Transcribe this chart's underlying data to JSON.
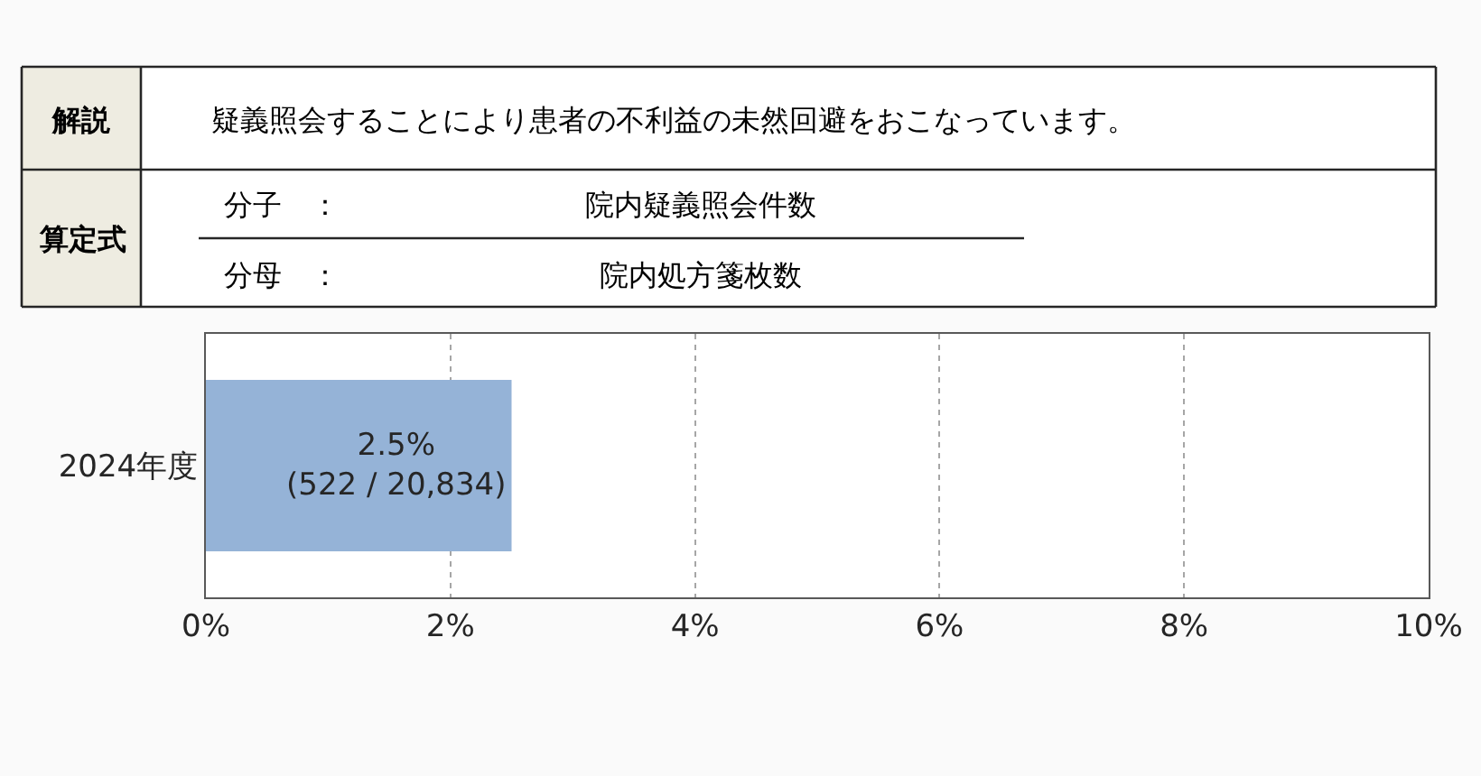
{
  "chart_data": {
    "type": "bar",
    "orientation": "horizontal",
    "categories": [
      "2024年度"
    ],
    "series": [
      {
        "color": "#95b3d7",
        "values": [
          2.5
        ],
        "value_labels": [
          "2.5%\n(522 / 20,834)"
        ]
      }
    ],
    "xlim": [
      0,
      10
    ],
    "xticks": [
      {
        "value": 0,
        "label": "0%"
      },
      {
        "value": 2,
        "label": "2%"
      },
      {
        "value": 4,
        "label": "4%"
      },
      {
        "value": 6,
        "label": "6%"
      },
      {
        "value": 8,
        "label": "8%"
      },
      {
        "value": 10,
        "label": "10%"
      }
    ],
    "grid": "x",
    "annotations": [
      "解説",
      "疑義照会することにより患者の不利益の未然回避をおこなっています。",
      "算定式",
      "分子　：",
      "院内疑義照会件数",
      "分母　：",
      "院内処方箋枚数"
    ]
  }
}
